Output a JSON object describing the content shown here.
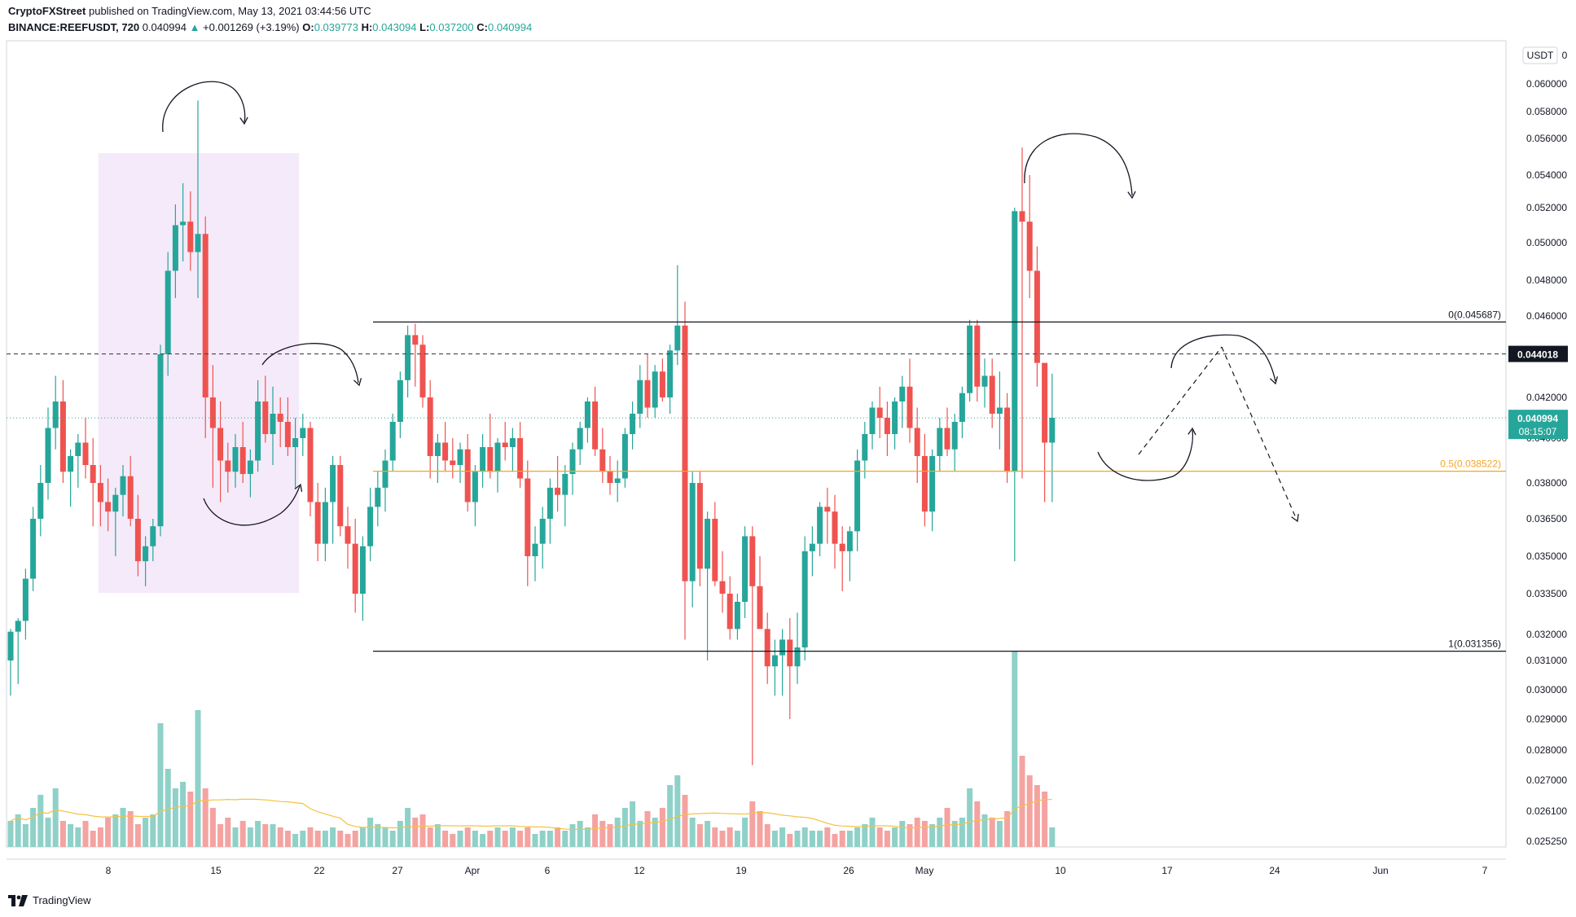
{
  "header": {
    "publisher": "CryptoFXStreet",
    "published_text": "published on TradingView.com, May 13, 2021 03:44:56 UTC",
    "symbol": "BINANCE:REEFUSDT, 720",
    "last": "0.040994",
    "change_arrow": "▲",
    "change": "+0.001269 (+3.19%)",
    "o_label": "O:",
    "o_val": "0.039773",
    "h_label": "H:",
    "h_val": "0.043094",
    "l_label": "L:",
    "l_val": "0.037200",
    "c_label": "C:",
    "c_val": "0.040994"
  },
  "footer": {
    "brand": "TradingView"
  },
  "colors": {
    "up": "#26a69a",
    "down": "#ef5350",
    "up_vol": "#8fd1c8",
    "down_vol": "#f4a3a1",
    "ma": "#f5c242",
    "fib_mid": "#f5a623",
    "highlight": "rgba(210,160,230,0.22)"
  },
  "chart_data": {
    "type": "candlestick",
    "currency_label": "USDT",
    "y_axis_ticks": [
      "0.060000",
      "0.058000",
      "0.056000",
      "0.054000",
      "0.052000",
      "0.050000",
      "0.048000",
      "0.046000",
      "0.044000",
      "0.042000",
      "0.040000",
      "0.038000",
      "0.036500",
      "0.035000",
      "0.033500",
      "0.032000",
      "0.031000",
      "0.030000",
      "0.029000",
      "0.028000",
      "0.027000",
      "0.026100",
      "0.025250"
    ],
    "x_axis_ticks": [
      "8",
      "15",
      "22",
      "27",
      "Apr",
      "6",
      "12",
      "19",
      "26",
      "May",
      "10",
      "17",
      "24",
      "Jun",
      "7"
    ],
    "price_labels": [
      {
        "name": "price-label-dashed",
        "value": "0.044018"
      },
      {
        "name": "price-label-last",
        "value": "0.040994",
        "sub": "08:15:07"
      }
    ],
    "fib_levels": [
      {
        "label": "0(0.045687)",
        "value": 0.045687
      },
      {
        "label": "0.5(0.038522)",
        "value": 0.038522
      },
      {
        "label": "1(0.031356)",
        "value": 0.031356
      }
    ],
    "dashed_level": 0.044018,
    "last_price": 0.040994,
    "candles_12h": [
      [
        0.031,
        0.0322,
        0.0298,
        0.0321
      ],
      [
        0.0321,
        0.0326,
        0.0302,
        0.0325
      ],
      [
        0.0325,
        0.0345,
        0.0318,
        0.0341
      ],
      [
        0.0341,
        0.037,
        0.0336,
        0.0365
      ],
      [
        0.0365,
        0.0388,
        0.0358,
        0.038
      ],
      [
        0.038,
        0.0415,
        0.0373,
        0.0405
      ],
      [
        0.0405,
        0.043,
        0.0395,
        0.0418
      ],
      [
        0.0418,
        0.0428,
        0.038,
        0.0385
      ],
      [
        0.0385,
        0.0395,
        0.037,
        0.0392
      ],
      [
        0.0392,
        0.0402,
        0.0378,
        0.0398
      ],
      [
        0.0398,
        0.041,
        0.0382,
        0.0388
      ],
      [
        0.0388,
        0.04,
        0.0362,
        0.038
      ],
      [
        0.038,
        0.0388,
        0.0362,
        0.0372
      ],
      [
        0.0372,
        0.0382,
        0.036,
        0.0368
      ],
      [
        0.0368,
        0.0378,
        0.035,
        0.0375
      ],
      [
        0.0375,
        0.0388,
        0.0366,
        0.0383
      ],
      [
        0.0383,
        0.0392,
        0.0362,
        0.0365
      ],
      [
        0.0365,
        0.0375,
        0.0342,
        0.0348
      ],
      [
        0.0348,
        0.0358,
        0.0338,
        0.0354
      ],
      [
        0.0354,
        0.0365,
        0.0348,
        0.0362
      ],
      [
        0.0362,
        0.0445,
        0.0358,
        0.044
      ],
      [
        0.044,
        0.0495,
        0.043,
        0.0485
      ],
      [
        0.0485,
        0.0522,
        0.047,
        0.051
      ],
      [
        0.051,
        0.0535,
        0.049,
        0.0512
      ],
      [
        0.0512,
        0.053,
        0.0485,
        0.0495
      ],
      [
        0.0495,
        0.0588,
        0.047,
        0.0505
      ],
      [
        0.0505,
        0.0515,
        0.04,
        0.042
      ],
      [
        0.042,
        0.0435,
        0.0378,
        0.0405
      ],
      [
        0.0405,
        0.0418,
        0.0372,
        0.039
      ],
      [
        0.039,
        0.0398,
        0.0376,
        0.0385
      ],
      [
        0.0385,
        0.0402,
        0.0378,
        0.0396
      ],
      [
        0.0396,
        0.0408,
        0.038,
        0.0384
      ],
      [
        0.0384,
        0.0395,
        0.0374,
        0.039
      ],
      [
        0.039,
        0.0428,
        0.0385,
        0.0418
      ],
      [
        0.0418,
        0.043,
        0.0398,
        0.0402
      ],
      [
        0.0402,
        0.0425,
        0.0388,
        0.0412
      ],
      [
        0.0412,
        0.042,
        0.0396,
        0.0408
      ],
      [
        0.0408,
        0.042,
        0.0392,
        0.0396
      ],
      [
        0.0396,
        0.041,
        0.0378,
        0.04
      ],
      [
        0.04,
        0.0412,
        0.0392,
        0.0405
      ],
      [
        0.0405,
        0.0408,
        0.0366,
        0.0372
      ],
      [
        0.0372,
        0.038,
        0.0348,
        0.0355
      ],
      [
        0.0355,
        0.0378,
        0.0348,
        0.0372
      ],
      [
        0.0372,
        0.0392,
        0.0355,
        0.0388
      ],
      [
        0.0388,
        0.0392,
        0.0358,
        0.0362
      ],
      [
        0.0362,
        0.037,
        0.0345,
        0.0355
      ],
      [
        0.0355,
        0.0365,
        0.0328,
        0.0335
      ],
      [
        0.0335,
        0.0358,
        0.0325,
        0.0354
      ],
      [
        0.0354,
        0.0378,
        0.0348,
        0.037
      ],
      [
        0.037,
        0.0385,
        0.0362,
        0.0378
      ],
      [
        0.0378,
        0.0395,
        0.0368,
        0.039
      ],
      [
        0.039,
        0.0412,
        0.0385,
        0.0408
      ],
      [
        0.0408,
        0.0432,
        0.04,
        0.0428
      ],
      [
        0.0428,
        0.0455,
        0.042,
        0.045
      ],
      [
        0.045,
        0.0456,
        0.0425,
        0.0445
      ],
      [
        0.0445,
        0.045,
        0.0415,
        0.042
      ],
      [
        0.042,
        0.0428,
        0.0382,
        0.0392
      ],
      [
        0.0392,
        0.0402,
        0.038,
        0.0398
      ],
      [
        0.0398,
        0.0408,
        0.0385,
        0.039
      ],
      [
        0.039,
        0.04,
        0.0382,
        0.0388
      ],
      [
        0.0388,
        0.0398,
        0.038,
        0.0395
      ],
      [
        0.0395,
        0.0402,
        0.0368,
        0.0372
      ],
      [
        0.0372,
        0.0388,
        0.0362,
        0.0385
      ],
      [
        0.0385,
        0.0402,
        0.0378,
        0.0396
      ],
      [
        0.0396,
        0.0412,
        0.0382,
        0.0385
      ],
      [
        0.0385,
        0.04,
        0.0376,
        0.0398
      ],
      [
        0.0398,
        0.0408,
        0.039,
        0.0396
      ],
      [
        0.0396,
        0.0405,
        0.0385,
        0.04
      ],
      [
        0.04,
        0.0408,
        0.0378,
        0.0382
      ],
      [
        0.0382,
        0.039,
        0.0338,
        0.035
      ],
      [
        0.035,
        0.0362,
        0.034,
        0.0355
      ],
      [
        0.0355,
        0.037,
        0.0345,
        0.0365
      ],
      [
        0.0365,
        0.0382,
        0.0355,
        0.0378
      ],
      [
        0.0378,
        0.0392,
        0.0368,
        0.0375
      ],
      [
        0.0375,
        0.0388,
        0.0362,
        0.0384
      ],
      [
        0.0384,
        0.0398,
        0.0375,
        0.0395
      ],
      [
        0.0395,
        0.0408,
        0.0388,
        0.0405
      ],
      [
        0.0405,
        0.042,
        0.0398,
        0.0418
      ],
      [
        0.0418,
        0.0425,
        0.0392,
        0.0395
      ],
      [
        0.0395,
        0.0405,
        0.038,
        0.0385
      ],
      [
        0.0385,
        0.0392,
        0.0375,
        0.038
      ],
      [
        0.038,
        0.039,
        0.0372,
        0.0382
      ],
      [
        0.0382,
        0.0405,
        0.0378,
        0.0402
      ],
      [
        0.0402,
        0.0418,
        0.0395,
        0.0412
      ],
      [
        0.0412,
        0.0435,
        0.0405,
        0.0428
      ],
      [
        0.0428,
        0.044,
        0.041,
        0.0415
      ],
      [
        0.0415,
        0.0435,
        0.041,
        0.0432
      ],
      [
        0.0432,
        0.0438,
        0.0418,
        0.042
      ],
      [
        0.042,
        0.0445,
        0.0412,
        0.0442
      ],
      [
        0.0442,
        0.0488,
        0.0435,
        0.0455
      ],
      [
        0.0455,
        0.0468,
        0.0318,
        0.034
      ],
      [
        0.034,
        0.0385,
        0.033,
        0.038
      ],
      [
        0.038,
        0.0385,
        0.0338,
        0.0345
      ],
      [
        0.0345,
        0.0368,
        0.031,
        0.0365
      ],
      [
        0.0365,
        0.0372,
        0.0338,
        0.034
      ],
      [
        0.034,
        0.0352,
        0.0328,
        0.0335
      ],
      [
        0.0335,
        0.0342,
        0.0318,
        0.0322
      ],
      [
        0.0322,
        0.0335,
        0.0318,
        0.0332
      ],
      [
        0.0332,
        0.0362,
        0.0326,
        0.0358
      ],
      [
        0.0358,
        0.0362,
        0.0275,
        0.0338
      ],
      [
        0.0338,
        0.035,
        0.0328,
        0.0322
      ],
      [
        0.0322,
        0.0328,
        0.0302,
        0.0308
      ],
      [
        0.0308,
        0.0318,
        0.0298,
        0.0312
      ],
      [
        0.0312,
        0.0322,
        0.0298,
        0.0318
      ],
      [
        0.0318,
        0.0326,
        0.029,
        0.0308
      ],
      [
        0.0308,
        0.0328,
        0.0302,
        0.0315
      ],
      [
        0.0315,
        0.0358,
        0.031,
        0.0352
      ],
      [
        0.0352,
        0.0362,
        0.0342,
        0.0355
      ],
      [
        0.0355,
        0.0372,
        0.035,
        0.037
      ],
      [
        0.037,
        0.0378,
        0.0355,
        0.0368
      ],
      [
        0.0368,
        0.0375,
        0.0345,
        0.0355
      ],
      [
        0.0355,
        0.0362,
        0.0336,
        0.0352
      ],
      [
        0.0352,
        0.0362,
        0.034,
        0.036
      ],
      [
        0.036,
        0.0395,
        0.0352,
        0.039
      ],
      [
        0.039,
        0.0408,
        0.0382,
        0.0402
      ],
      [
        0.0402,
        0.0418,
        0.0395,
        0.0415
      ],
      [
        0.0415,
        0.0425,
        0.04,
        0.041
      ],
      [
        0.041,
        0.0418,
        0.0392,
        0.0402
      ],
      [
        0.0402,
        0.042,
        0.0395,
        0.0418
      ],
      [
        0.0418,
        0.043,
        0.0405,
        0.0425
      ],
      [
        0.0425,
        0.0438,
        0.0398,
        0.0405
      ],
      [
        0.0405,
        0.0415,
        0.038,
        0.0392
      ],
      [
        0.0392,
        0.0402,
        0.0362,
        0.0368
      ],
      [
        0.0368,
        0.0395,
        0.036,
        0.0392
      ],
      [
        0.0392,
        0.041,
        0.0385,
        0.0405
      ],
      [
        0.0405,
        0.0415,
        0.0392,
        0.0395
      ],
      [
        0.0395,
        0.0412,
        0.0385,
        0.0408
      ],
      [
        0.0408,
        0.0425,
        0.04,
        0.0422
      ],
      [
        0.0422,
        0.0458,
        0.0418,
        0.0455
      ],
      [
        0.0455,
        0.0458,
        0.0418,
        0.0425
      ],
      [
        0.0425,
        0.0438,
        0.0415,
        0.043
      ],
      [
        0.043,
        0.0438,
        0.0405,
        0.0412
      ],
      [
        0.0412,
        0.0432,
        0.0395,
        0.0415
      ],
      [
        0.0415,
        0.0422,
        0.038,
        0.0385
      ],
      [
        0.0385,
        0.052,
        0.0348,
        0.0518
      ],
      [
        0.0518,
        0.0555,
        0.0382,
        0.0512
      ],
      [
        0.0512,
        0.054,
        0.047,
        0.0485
      ],
      [
        0.0485,
        0.0498,
        0.0425,
        0.0436
      ],
      [
        0.0436,
        0.0428,
        0.0372,
        0.0398
      ],
      [
        0.0398,
        0.0431,
        0.0372,
        0.041
      ]
    ],
    "volume_relative": [
      8,
      10,
      7,
      12,
      16,
      9,
      18,
      8,
      7,
      6,
      8,
      5,
      6,
      9,
      10,
      12,
      11,
      7,
      9,
      10,
      38,
      24,
      18,
      20,
      17,
      42,
      18,
      12,
      7,
      9,
      6,
      8,
      6,
      8,
      7,
      7,
      6,
      5,
      4,
      5,
      6,
      5,
      5,
      6,
      5,
      4,
      5,
      6,
      9,
      7,
      6,
      5,
      8,
      12,
      9,
      10,
      6,
      7,
      5,
      4,
      5,
      6,
      5,
      4,
      5,
      6,
      5,
      6,
      5,
      6,
      4,
      5,
      5,
      6,
      5,
      7,
      8,
      6,
      10,
      8,
      7,
      9,
      12,
      14,
      8,
      11,
      9,
      12,
      19,
      22,
      16,
      9,
      7,
      8,
      6,
      5,
      6,
      5,
      9,
      14,
      11,
      7,
      5,
      6,
      4,
      5,
      6,
      5,
      5,
      6,
      4,
      5,
      5,
      6,
      7,
      9,
      6,
      5,
      6,
      8,
      7,
      9,
      8,
      7,
      9,
      12,
      8,
      9,
      18,
      14,
      10,
      9,
      8,
      11,
      60,
      28,
      22,
      19,
      17,
      6
    ],
    "annotations": [
      "curved-arrow-top-left",
      "curved-arrow-mid-left",
      "curved-arrow-bottom-left",
      "curved-arrow-top-right",
      "curved-arrow-bottom-right",
      "curved-arrow-forecast",
      "dashed-forecast-up",
      "dashed-forecast-down"
    ]
  }
}
